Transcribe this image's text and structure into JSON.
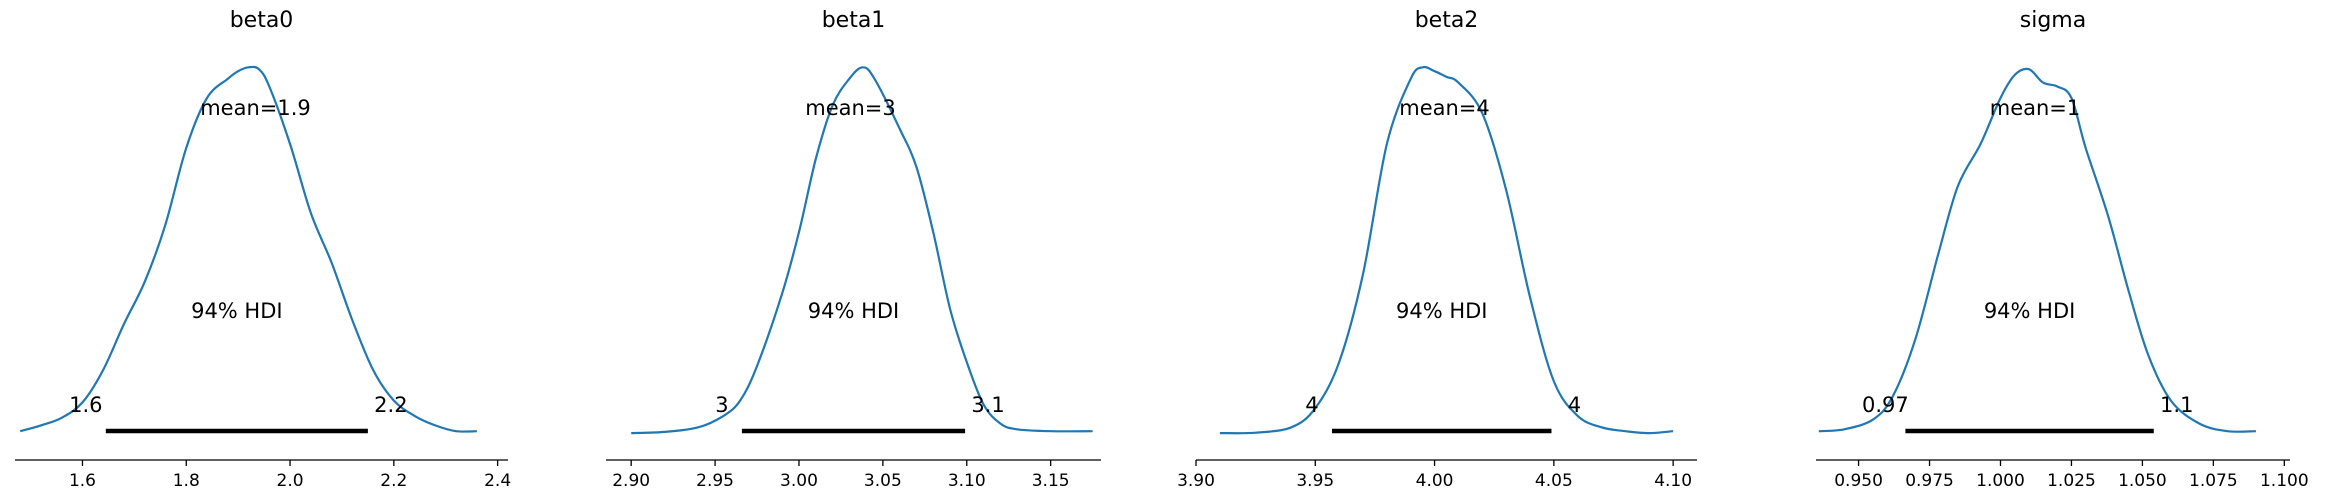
{
  "chart_data": [
    {
      "type": "line",
      "title": "beta0",
      "mean_label": "mean=1.9",
      "hdi_label": "94% HDI",
      "hdi_low_label": "1.6",
      "hdi_high_label": "2.2",
      "hdi": [
        1.645,
        2.15
      ],
      "xlim": [
        1.47,
        2.42
      ],
      "ylim": [
        0,
        1.0
      ],
      "ticks": [
        1.6,
        1.8,
        2.0,
        2.2,
        2.4
      ],
      "tick_labels": [
        "1.6",
        "1.8",
        "2.0",
        "2.2",
        "2.4"
      ],
      "x": [
        1.48,
        1.52,
        1.56,
        1.6,
        1.64,
        1.68,
        1.72,
        1.76,
        1.8,
        1.84,
        1.88,
        1.9,
        1.92,
        1.94,
        1.96,
        2.0,
        2.04,
        2.08,
        2.12,
        2.16,
        2.2,
        2.24,
        2.28,
        2.32,
        2.36
      ],
      "y": [
        0.01,
        0.025,
        0.045,
        0.085,
        0.17,
        0.29,
        0.4,
        0.55,
        0.75,
        0.88,
        0.93,
        0.95,
        0.96,
        0.955,
        0.91,
        0.76,
        0.58,
        0.45,
        0.3,
        0.17,
        0.09,
        0.05,
        0.025,
        0.01,
        0.01
      ]
    },
    {
      "type": "line",
      "title": "beta1",
      "mean_label": "mean=3",
      "hdi_label": "94% HDI",
      "hdi_low_label": "3",
      "hdi_high_label": "3.1",
      "hdi": [
        2.966,
        3.099
      ],
      "xlim": [
        2.885,
        3.18
      ],
      "ylim": [
        0,
        1.0
      ],
      "ticks": [
        2.9,
        2.95,
        3.0,
        3.05,
        3.1,
        3.15
      ],
      "tick_labels": [
        "2.90",
        "2.95",
        "3.00",
        "3.05",
        "3.10",
        "3.15"
      ],
      "x": [
        2.9,
        2.92,
        2.94,
        2.955,
        2.965,
        2.975,
        2.99,
        3.0,
        3.01,
        3.02,
        3.03,
        3.038,
        3.045,
        3.06,
        3.07,
        3.08,
        3.09,
        3.1,
        3.11,
        3.12,
        3.13,
        3.15,
        3.175
      ],
      "y": [
        0.005,
        0.008,
        0.02,
        0.05,
        0.09,
        0.18,
        0.37,
        0.53,
        0.72,
        0.86,
        0.93,
        0.96,
        0.93,
        0.8,
        0.7,
        0.53,
        0.33,
        0.19,
        0.08,
        0.03,
        0.015,
        0.01,
        0.01
      ]
    },
    {
      "type": "line",
      "title": "beta2",
      "mean_label": "mean=4",
      "hdi_label": "94% HDI",
      "hdi_low_label": "4",
      "hdi_high_label": "4",
      "hdi": [
        3.957,
        4.049
      ],
      "xlim": [
        3.9,
        4.11
      ],
      "ylim": [
        0,
        1.0
      ],
      "ticks": [
        3.9,
        3.95,
        4.0,
        4.05,
        4.1
      ],
      "tick_labels": [
        "3.90",
        "3.95",
        "4.00",
        "4.05",
        "4.10"
      ],
      "x": [
        3.91,
        3.925,
        3.94,
        3.95,
        3.96,
        3.97,
        3.98,
        3.99,
        3.995,
        4.0,
        4.005,
        4.01,
        4.02,
        4.03,
        4.04,
        4.05,
        4.06,
        4.07,
        4.08,
        4.09,
        4.1
      ],
      "y": [
        0.005,
        0.006,
        0.02,
        0.07,
        0.19,
        0.42,
        0.76,
        0.93,
        0.96,
        0.95,
        0.935,
        0.92,
        0.84,
        0.64,
        0.36,
        0.14,
        0.05,
        0.02,
        0.01,
        0.005,
        0.01
      ]
    },
    {
      "type": "line",
      "title": "sigma",
      "mean_label": "mean=1",
      "hdi_label": "94% HDI",
      "hdi_low_label": "0.97",
      "hdi_high_label": "1.1",
      "hdi": [
        0.9665,
        1.054
      ],
      "xlim": [
        0.935,
        1.102
      ],
      "ylim": [
        0,
        1.0
      ],
      "ticks": [
        0.95,
        0.975,
        1.0,
        1.025,
        1.05,
        1.075,
        1.1
      ],
      "tick_labels": [
        "0.950",
        "0.975",
        "1.000",
        "1.025",
        "1.050",
        "1.075",
        "1.100"
      ],
      "x": [
        0.936,
        0.945,
        0.955,
        0.962,
        0.97,
        0.978,
        0.985,
        0.993,
        1.0,
        1.005,
        1.01,
        1.015,
        1.02,
        1.025,
        1.03,
        1.038,
        1.045,
        1.052,
        1.06,
        1.07,
        1.08,
        1.09
      ],
      "y": [
        0.01,
        0.015,
        0.04,
        0.1,
        0.25,
        0.47,
        0.65,
        0.76,
        0.88,
        0.94,
        0.955,
        0.92,
        0.91,
        0.88,
        0.75,
        0.57,
        0.38,
        0.21,
        0.09,
        0.03,
        0.01,
        0.01
      ]
    }
  ]
}
